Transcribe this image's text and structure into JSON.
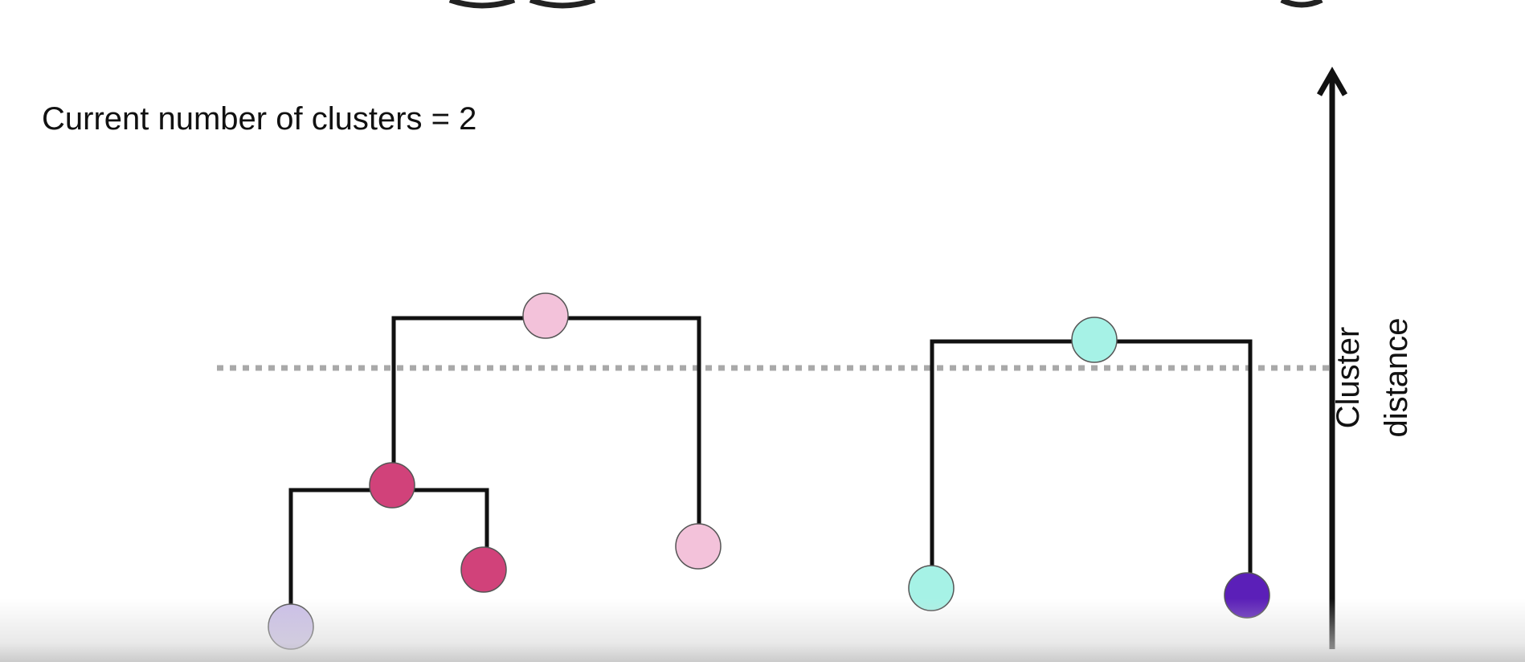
{
  "caption": "Current number of clusters = 2",
  "axis": {
    "label_line1": "Cluster",
    "label_line2": "distance"
  },
  "colors": {
    "link": "#111111",
    "cut_line": "#a9a9a9",
    "node_outline": "#555555",
    "light_pink": "#f3c2da",
    "magenta": "#d1427a",
    "lavender": "#cbbfe8",
    "aqua": "#a6f2e6",
    "purple": "#5b1fb8"
  },
  "dendrogram": {
    "cluster_count": 2,
    "nodes": [
      {
        "id": "merge-left-top",
        "color": "light_pink"
      },
      {
        "id": "merge-left-inner",
        "color": "magenta"
      },
      {
        "id": "leaf-lavender",
        "color": "lavender"
      },
      {
        "id": "leaf-magenta",
        "color": "magenta"
      },
      {
        "id": "leaf-pink",
        "color": "light_pink"
      },
      {
        "id": "merge-right-top",
        "color": "aqua"
      },
      {
        "id": "leaf-aqua",
        "color": "aqua"
      },
      {
        "id": "leaf-purple",
        "color": "purple"
      }
    ]
  }
}
